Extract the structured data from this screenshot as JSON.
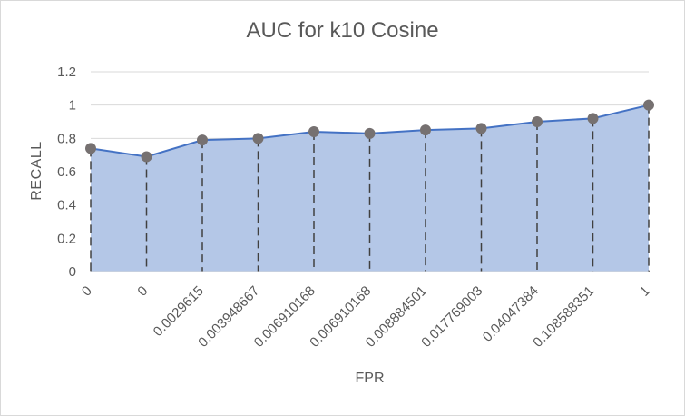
{
  "chart_data": {
    "type": "area",
    "title": "AUC for k10 Cosine",
    "xlabel": "FPR",
    "ylabel": "RECALL",
    "categories": [
      "0",
      "0",
      "0.0029615",
      "0.003948667",
      "0.006910168",
      "0.006910168",
      "0.008884501",
      "0.017769003",
      "0.04047384",
      "0.108588351",
      "1"
    ],
    "series": [
      {
        "values": [
          0.74,
          0.69,
          0.79,
          0.8,
          0.84,
          0.83,
          0.85,
          0.86,
          0.9,
          0.92,
          1.0
        ]
      }
    ],
    "ylim": [
      0,
      1.2
    ],
    "yticks": [
      "0",
      "0.2",
      "0.4",
      "0.6",
      "0.8",
      "1",
      "1.2"
    ],
    "grid": "horizontal",
    "drop_lines": true,
    "colors": {
      "fill": "#b4c7e7",
      "line": "#4472c4",
      "marker": "#767171",
      "drop_line": "#404040",
      "grid": "#d9d9d9",
      "text": "#595959"
    }
  }
}
